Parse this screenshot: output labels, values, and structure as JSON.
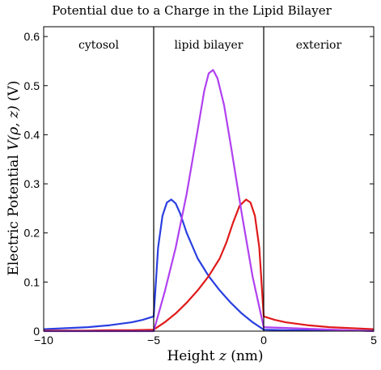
{
  "chart_data": {
    "type": "line",
    "title": "Potential due to a Charge in the Lipid Bilayer",
    "xlabel_prefix": "Height ",
    "xlabel_var": "z",
    "xlabel_suffix": " (nm)",
    "ylabel_prefix": "Electric Potential ",
    "ylabel_var": "V(ρ, z)",
    "ylabel_suffix": " (V)",
    "xlim": [
      -10,
      5
    ],
    "ylim": [
      0,
      0.62
    ],
    "xticks": [
      -10,
      -5,
      0,
      5
    ],
    "xtick_labels": [
      "−10",
      "−5",
      "0",
      "5"
    ],
    "yticks": [
      0,
      0.1,
      0.2,
      0.3,
      0.4,
      0.5,
      0.6
    ],
    "ytick_labels": [
      "0",
      "0.1",
      "0.2",
      "0.3",
      "0.4",
      "0.5",
      "0.6"
    ],
    "region_boundaries": [
      -5,
      0
    ],
    "regions": [
      {
        "label": "cytosol"
      },
      {
        "label": "lipid bilayer"
      },
      {
        "label": "exterior"
      }
    ],
    "grid": false,
    "legend": "none",
    "series": [
      {
        "color": "#2a3fe0",
        "points": [
          [
            -10,
            0.004
          ],
          [
            -9,
            0.006
          ],
          [
            -8,
            0.008
          ],
          [
            -7,
            0.012
          ],
          [
            -6,
            0.018
          ],
          [
            -5.5,
            0.023
          ],
          [
            -5,
            0.03
          ],
          [
            -5,
            0.03
          ],
          [
            -4.8,
            0.17
          ],
          [
            -4.6,
            0.235
          ],
          [
            -4.4,
            0.262
          ],
          [
            -4.2,
            0.268
          ],
          [
            -4.0,
            0.26
          ],
          [
            -3.8,
            0.24
          ],
          [
            -3.5,
            0.2
          ],
          [
            -3.0,
            0.148
          ],
          [
            -2.5,
            0.112
          ],
          [
            -2.0,
            0.083
          ],
          [
            -1.5,
            0.058
          ],
          [
            -1.0,
            0.036
          ],
          [
            -0.5,
            0.018
          ],
          [
            0,
            0.003
          ],
          [
            0,
            0.003
          ],
          [
            1,
            0.002
          ],
          [
            2,
            0.002
          ],
          [
            3,
            0.001
          ],
          [
            4,
            0.001
          ],
          [
            5,
            0.001
          ]
        ]
      },
      {
        "color": "#e01a1a",
        "points": [
          [
            -10,
            0.001
          ],
          [
            -9,
            0.001
          ],
          [
            -8,
            0.001
          ],
          [
            -7,
            0.002
          ],
          [
            -6,
            0.002
          ],
          [
            -5,
            0.003
          ],
          [
            -5,
            0.003
          ],
          [
            -4.5,
            0.018
          ],
          [
            -4.0,
            0.036
          ],
          [
            -3.5,
            0.058
          ],
          [
            -3.0,
            0.083
          ],
          [
            -2.5,
            0.112
          ],
          [
            -2.0,
            0.148
          ],
          [
            -1.7,
            0.18
          ],
          [
            -1.4,
            0.22
          ],
          [
            -1.1,
            0.255
          ],
          [
            -0.8,
            0.268
          ],
          [
            -0.6,
            0.262
          ],
          [
            -0.4,
            0.235
          ],
          [
            -0.2,
            0.17
          ],
          [
            0,
            0.03
          ],
          [
            0,
            0.03
          ],
          [
            0.5,
            0.023
          ],
          [
            1,
            0.018
          ],
          [
            2,
            0.012
          ],
          [
            3,
            0.008
          ],
          [
            4,
            0.006
          ],
          [
            5,
            0.004
          ]
        ]
      },
      {
        "color": "#b040f0",
        "points": [
          [
            -10,
            0.0
          ],
          [
            -7,
            0.0
          ],
          [
            -5,
            0.0
          ],
          [
            -5,
            0.0
          ],
          [
            -4.5,
            0.08
          ],
          [
            -4.0,
            0.17
          ],
          [
            -3.5,
            0.28
          ],
          [
            -3.0,
            0.41
          ],
          [
            -2.7,
            0.49
          ],
          [
            -2.5,
            0.525
          ],
          [
            -2.3,
            0.532
          ],
          [
            -2.1,
            0.515
          ],
          [
            -1.8,
            0.46
          ],
          [
            -1.5,
            0.38
          ],
          [
            -1.0,
            0.24
          ],
          [
            -0.5,
            0.11
          ],
          [
            0,
            0.008
          ],
          [
            0,
            0.008
          ],
          [
            5,
            0.0
          ]
        ]
      }
    ]
  }
}
